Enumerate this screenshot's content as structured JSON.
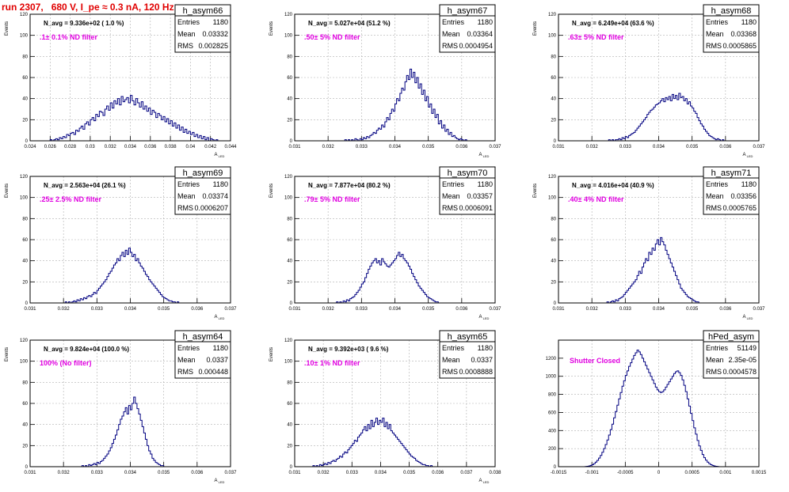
{
  "title": "run 2307,   680 V, I_pe ≈ 0.3 nA, 120 Hz",
  "colors": {
    "line": "#000080",
    "title": "#e00000",
    "annotation": "#e000e0",
    "grid": "#b0b0b0"
  },
  "stats_labels": [
    "Entries",
    "Mean",
    "RMS"
  ],
  "chart_data": [
    {
      "type": "bar",
      "name": "h_asym66",
      "avg": "N_avg = 9.336e+02 ( 1.0 %)",
      "filter": ".1± 0.1% ND filter",
      "entries": "1180",
      "mean": "0.03332",
      "rms": "0.002825",
      "ylabel": "Events",
      "xlabel": "A_LED",
      "xlim": [
        0.024,
        0.044
      ],
      "ylim": [
        0,
        120
      ],
      "xticks": [
        "0.024",
        "0.026",
        "0.028",
        "0.03",
        "0.032",
        "0.034",
        "0.036",
        "0.038",
        "0.04",
        "0.042",
        "0.044"
      ],
      "yticks": [
        "0",
        "20",
        "40",
        "60",
        "80",
        "100",
        "120"
      ],
      "values": [
        0,
        0,
        0,
        0,
        0,
        0,
        0,
        0,
        0,
        0,
        0,
        1,
        0,
        1,
        2,
        1,
        3,
        2,
        4,
        3,
        6,
        5,
        7,
        8,
        6,
        10,
        9,
        12,
        14,
        11,
        16,
        18,
        15,
        20,
        22,
        19,
        25,
        23,
        28,
        27,
        24,
        30,
        33,
        29,
        36,
        31,
        38,
        35,
        40,
        34,
        42,
        37,
        39,
        41,
        36,
        43,
        38,
        34,
        40,
        36,
        32,
        37,
        30,
        33,
        28,
        31,
        25,
        29,
        27,
        22,
        26,
        24,
        20,
        23,
        18,
        21,
        16,
        19,
        14,
        17,
        12,
        15,
        10,
        13,
        8,
        11,
        7,
        9,
        6,
        8,
        4,
        6,
        3,
        5,
        2,
        4,
        1,
        3,
        0,
        2,
        1,
        0,
        1,
        0,
        0,
        0,
        0,
        0,
        0,
        0
      ]
    },
    {
      "type": "bar",
      "name": "h_asym67",
      "avg": "N_avg = 5.027e+04 (51.2 %)",
      "filter": ".50± 5% ND filter",
      "entries": "1180",
      "mean": "0.03364",
      "rms": "0.0004954",
      "ylabel": "Events",
      "xlabel": "A_LED",
      "xlim": [
        0.031,
        0.037
      ],
      "ylim": [
        0,
        120
      ],
      "xticks": [
        "0.031",
        "0.032",
        "0.033",
        "0.034",
        "0.035",
        "0.036",
        "0.037"
      ],
      "yticks": [
        "0",
        "20",
        "40",
        "60",
        "80",
        "100",
        "120"
      ],
      "values": [
        0,
        0,
        0,
        0,
        0,
        0,
        0,
        0,
        0,
        0,
        0,
        0,
        0,
        0,
        0,
        0,
        0,
        0,
        0,
        0,
        0,
        0,
        0,
        0,
        0,
        0,
        0,
        0,
        0,
        0,
        1,
        0,
        1,
        0,
        1,
        0,
        2,
        1,
        0,
        2,
        1,
        3,
        2,
        4,
        3,
        5,
        6,
        8,
        7,
        10,
        12,
        11,
        15,
        13,
        18,
        22,
        20,
        26,
        30,
        28,
        35,
        40,
        38,
        45,
        50,
        48,
        56,
        62,
        58,
        68,
        60,
        65,
        55,
        60,
        50,
        54,
        44,
        48,
        38,
        42,
        32,
        35,
        26,
        30,
        22,
        25,
        16,
        19,
        12,
        15,
        9,
        11,
        6,
        8,
        4,
        5,
        3,
        2,
        1,
        2,
        1,
        0,
        1,
        0,
        0,
        0,
        0,
        0,
        0,
        0,
        0,
        0,
        0,
        0,
        0,
        0,
        0,
        0,
        0,
        0
      ]
    },
    {
      "type": "bar",
      "name": "h_asym68",
      "avg": "N_avg = 6.249e+04 (63.6 %)",
      "filter": ".63± 5% ND filter",
      "entries": "1180",
      "mean": "0.03368",
      "rms": "0.0005865",
      "ylabel": "Events",
      "xlabel": "A_LED",
      "xlim": [
        0.031,
        0.037
      ],
      "ylim": [
        0,
        120
      ],
      "xticks": [
        "0.031",
        "0.032",
        "0.033",
        "0.034",
        "0.035",
        "0.036",
        "0.037"
      ],
      "yticks": [
        "0",
        "20",
        "40",
        "60",
        "80",
        "100",
        "120"
      ],
      "values": [
        0,
        0,
        0,
        0,
        0,
        0,
        0,
        0,
        0,
        0,
        0,
        0,
        0,
        0,
        0,
        0,
        0,
        0,
        0,
        0,
        0,
        0,
        0,
        0,
        0,
        0,
        0,
        0,
        0,
        0,
        1,
        0,
        1,
        0,
        1,
        1,
        2,
        1,
        3,
        2,
        4,
        3,
        5,
        6,
        7,
        8,
        10,
        12,
        14,
        16,
        18,
        20,
        22,
        25,
        27,
        29,
        30,
        32,
        34,
        35,
        36,
        38,
        40,
        37,
        41,
        39,
        42,
        38,
        44,
        40,
        43,
        39,
        45,
        41,
        42,
        38,
        40,
        35,
        37,
        33,
        31,
        28,
        26,
        22,
        19,
        16,
        14,
        11,
        9,
        7,
        5,
        4,
        3,
        2,
        1,
        2,
        1,
        0,
        1,
        0,
        0,
        0,
        0,
        0,
        0,
        0,
        0,
        0,
        0,
        0,
        0,
        0,
        0,
        0,
        0,
        0,
        0,
        0,
        0,
        0
      ]
    },
    {
      "type": "bar",
      "name": "h_asym69",
      "avg": "N_avg = 2.563e+04 (26.1 %)",
      "filter": ".25± 2.5% ND filter",
      "entries": "1180",
      "mean": "0.03374",
      "rms": "0.0006207",
      "ylabel": "Events",
      "xlabel": "A_LED",
      "xlim": [
        0.031,
        0.037
      ],
      "ylim": [
        0,
        120
      ],
      "xticks": [
        "0.031",
        "0.032",
        "0.033",
        "0.034",
        "0.035",
        "0.036",
        "0.037"
      ],
      "yticks": [
        "0",
        "20",
        "40",
        "60",
        "80",
        "100",
        "120"
      ],
      "values": [
        0,
        0,
        0,
        0,
        0,
        0,
        0,
        0,
        0,
        0,
        0,
        0,
        0,
        0,
        0,
        0,
        0,
        0,
        0,
        0,
        0,
        1,
        0,
        1,
        0,
        1,
        2,
        1,
        3,
        2,
        4,
        3,
        5,
        4,
        6,
        7,
        6,
        8,
        10,
        9,
        12,
        14,
        16,
        18,
        20,
        22,
        25,
        28,
        30,
        33,
        36,
        38,
        42,
        40,
        45,
        48,
        44,
        50,
        46,
        52,
        48,
        44,
        46,
        40,
        42,
        38,
        35,
        33,
        30,
        27,
        25,
        22,
        20,
        18,
        16,
        14,
        12,
        10,
        8,
        6,
        5,
        4,
        3,
        2,
        2,
        1,
        1,
        0,
        1,
        0,
        0,
        0,
        0,
        0,
        0,
        0,
        0,
        0,
        0,
        0,
        0,
        0,
        0,
        0,
        0,
        0,
        0,
        0,
        0,
        0,
        0,
        0,
        0,
        0,
        0,
        0,
        0,
        0,
        0,
        0
      ]
    },
    {
      "type": "bar",
      "name": "h_asym70",
      "avg": "N_avg = 7.877e+04 (80.2 %)",
      "filter": ".79± 5% ND filter",
      "entries": "1180",
      "mean": "0.03357",
      "rms": "0.0006091",
      "ylabel": "Events",
      "xlabel": "A_LED",
      "xlim": [
        0.031,
        0.037
      ],
      "ylim": [
        0,
        120
      ],
      "xticks": [
        "0.031",
        "0.032",
        "0.033",
        "0.034",
        "0.035",
        "0.036",
        "0.037"
      ],
      "yticks": [
        "0",
        "20",
        "40",
        "60",
        "80",
        "100",
        "120"
      ],
      "values": [
        0,
        0,
        0,
        0,
        0,
        0,
        0,
        0,
        0,
        0,
        0,
        0,
        0,
        0,
        0,
        0,
        0,
        0,
        0,
        0,
        0,
        0,
        0,
        0,
        0,
        1,
        0,
        1,
        0,
        2,
        1,
        3,
        2,
        4,
        5,
        6,
        8,
        10,
        12,
        15,
        18,
        20,
        24,
        28,
        32,
        35,
        38,
        40,
        42,
        38,
        40,
        36,
        42,
        39,
        37,
        35,
        34,
        36,
        38,
        40,
        42,
        45,
        48,
        44,
        46,
        42,
        40,
        38,
        35,
        32,
        28,
        25,
        22,
        19,
        16,
        14,
        12,
        10,
        8,
        6,
        5,
        4,
        3,
        2,
        1,
        1,
        0,
        0,
        0,
        0,
        0,
        0,
        0,
        0,
        0,
        0,
        0,
        0,
        0,
        0,
        0,
        0,
        0,
        0,
        0,
        0,
        0,
        0,
        0,
        0,
        0,
        0,
        0,
        0,
        0,
        0,
        0,
        0,
        0,
        0
      ]
    },
    {
      "type": "bar",
      "name": "h_asym71",
      "avg": "N_avg = 4.016e+04 (40.9 %)",
      "filter": ".40± 4% ND filter",
      "entries": "1180",
      "mean": "0.03356",
      "rms": "0.0005765",
      "ylabel": "Events",
      "xlabel": "A_LED",
      "xlim": [
        0.031,
        0.037
      ],
      "ylim": [
        0,
        120
      ],
      "xticks": [
        "0.031",
        "0.032",
        "0.033",
        "0.034",
        "0.035",
        "0.036",
        "0.037"
      ],
      "yticks": [
        "0",
        "20",
        "40",
        "60",
        "80",
        "100",
        "120"
      ],
      "values": [
        0,
        0,
        0,
        0,
        0,
        0,
        0,
        0,
        0,
        0,
        0,
        0,
        0,
        0,
        0,
        0,
        0,
        0,
        0,
        0,
        0,
        0,
        0,
        0,
        0,
        0,
        0,
        0,
        0,
        1,
        0,
        1,
        2,
        1,
        3,
        2,
        4,
        5,
        6,
        8,
        10,
        12,
        14,
        16,
        18,
        20,
        22,
        26,
        30,
        28,
        34,
        38,
        42,
        40,
        48,
        46,
        52,
        50,
        56,
        60,
        55,
        62,
        58,
        55,
        50,
        46,
        42,
        38,
        34,
        30,
        26,
        22,
        18,
        14,
        12,
        10,
        8,
        6,
        5,
        4,
        3,
        2,
        1,
        1,
        0,
        0,
        0,
        0,
        0,
        0,
        0,
        0,
        0,
        0,
        0,
        0,
        0,
        0,
        0,
        0,
        0,
        0,
        0,
        0,
        0,
        0,
        0,
        0,
        0,
        0,
        0,
        0,
        0,
        0,
        0,
        0,
        0,
        0,
        0,
        0
      ]
    },
    {
      "type": "bar",
      "name": "h_asym64",
      "avg": "N_avg = 9.824e+04 (100.0 %)",
      "filter": "100% (No filter)",
      "entries": "1180",
      "mean": "0.0337",
      "rms": "0.000448",
      "ylabel": "Events",
      "xlabel": "A_LED",
      "xlim": [
        0.031,
        0.037
      ],
      "ylim": [
        0,
        120
      ],
      "xticks": [
        "0.031",
        "0.032",
        "0.033",
        "0.034",
        "0.035",
        "0.036",
        "0.037"
      ],
      "yticks": [
        "0",
        "20",
        "40",
        "60",
        "80",
        "100",
        "120"
      ],
      "values": [
        0,
        0,
        0,
        0,
        0,
        0,
        0,
        0,
        0,
        0,
        0,
        0,
        0,
        0,
        0,
        0,
        0,
        0,
        0,
        0,
        0,
        0,
        0,
        0,
        0,
        0,
        0,
        0,
        0,
        0,
        0,
        1,
        0,
        1,
        0,
        2,
        1,
        2,
        3,
        2,
        4,
        3,
        5,
        6,
        8,
        10,
        12,
        15,
        18,
        22,
        26,
        30,
        35,
        40,
        45,
        48,
        52,
        56,
        50,
        58,
        54,
        60,
        66,
        60,
        55,
        50,
        44,
        38,
        32,
        26,
        20,
        15,
        12,
        8,
        6,
        4,
        3,
        2,
        1,
        1,
        0,
        0,
        0,
        0,
        0,
        0,
        0,
        0,
        0,
        0,
        0,
        0,
        0,
        0,
        0,
        0,
        0,
        0,
        0,
        0,
        0,
        0,
        0,
        0,
        0,
        0,
        0,
        0,
        0,
        0,
        0,
        0,
        0,
        0,
        0,
        0,
        0,
        0,
        0,
        0
      ]
    },
    {
      "type": "bar",
      "name": "h_asym65",
      "avg": "N_avg = 9.392e+03 ( 9.6 %)",
      "filter": ".10± 1% ND filter",
      "entries": "1180",
      "mean": "0.0337",
      "rms": "0.0008888",
      "ylabel": "Events",
      "xlabel": "A_LED",
      "xlim": [
        0.031,
        0.038
      ],
      "ylim": [
        0,
        120
      ],
      "xticks": [
        "0.031",
        "0.032",
        "0.033",
        "0.034",
        "0.035",
        "0.036",
        "0.037",
        "0.038"
      ],
      "yticks": [
        "0",
        "20",
        "40",
        "60",
        "80",
        "100",
        "120"
      ],
      "values": [
        0,
        0,
        0,
        0,
        0,
        0,
        0,
        0,
        0,
        0,
        0,
        1,
        0,
        1,
        0,
        2,
        1,
        2,
        3,
        2,
        4,
        3,
        5,
        6,
        5,
        7,
        8,
        10,
        9,
        12,
        14,
        13,
        16,
        18,
        20,
        22,
        25,
        24,
        28,
        30,
        32,
        35,
        38,
        34,
        40,
        36,
        44,
        38,
        42,
        46,
        40,
        44,
        42,
        46,
        38,
        42,
        36,
        40,
        34,
        32,
        30,
        28,
        26,
        24,
        22,
        20,
        18,
        16,
        14,
        12,
        10,
        9,
        8,
        6,
        5,
        4,
        3,
        2,
        2,
        1,
        1,
        0,
        1,
        0,
        0,
        0,
        0,
        0,
        0,
        0,
        0,
        0,
        0,
        0,
        0,
        0,
        0,
        0,
        0,
        0,
        0,
        0,
        0,
        0,
        0,
        0,
        0,
        0,
        0,
        0,
        0,
        0,
        0,
        0,
        0,
        0,
        0,
        0,
        0,
        0,
        0
      ]
    },
    {
      "type": "bar",
      "name": "hPed_asym",
      "avg": "",
      "filter": "Shutter Closed",
      "entries": "51149",
      "mean": "2.35e-05",
      "rms": "0.0004578",
      "ylabel": "",
      "xlabel": "",
      "xlim": [
        -0.0015,
        0.0015
      ],
      "ylim": [
        0,
        1400
      ],
      "xticks": [
        "-0.0015",
        "-0.001",
        "-0.0005",
        "0",
        "0.0005",
        "0.001",
        "0.0015"
      ],
      "yticks": [
        "0",
        "200",
        "400",
        "600",
        "800",
        "1000",
        "1200"
      ],
      "values": [
        0,
        0,
        0,
        0,
        0,
        0,
        0,
        0,
        0,
        0,
        0,
        0,
        0,
        0,
        0,
        0,
        2,
        4,
        8,
        14,
        22,
        34,
        50,
        70,
        95,
        125,
        160,
        200,
        245,
        295,
        350,
        410,
        470,
        540,
        610,
        680,
        750,
        820,
        890,
        950,
        1010,
        1060,
        1110,
        1150,
        1190,
        1230,
        1260,
        1290,
        1270,
        1240,
        1200,
        1160,
        1120,
        1080,
        1040,
        1000,
        960,
        920,
        880,
        850,
        830,
        820,
        830,
        850,
        880,
        910,
        940,
        970,
        1000,
        1030,
        1050,
        1060,
        1040,
        1010,
        960,
        900,
        830,
        750,
        670,
        590,
        510,
        430,
        360,
        290,
        230,
        180,
        135,
        100,
        72,
        50,
        34,
        22,
        14,
        8,
        4,
        2,
        0,
        0,
        0,
        0,
        0,
        0,
        0,
        0,
        0,
        0,
        0,
        0,
        0,
        0,
        0,
        0,
        0,
        0,
        0,
        0,
        0,
        0,
        0,
        0
      ]
    }
  ]
}
